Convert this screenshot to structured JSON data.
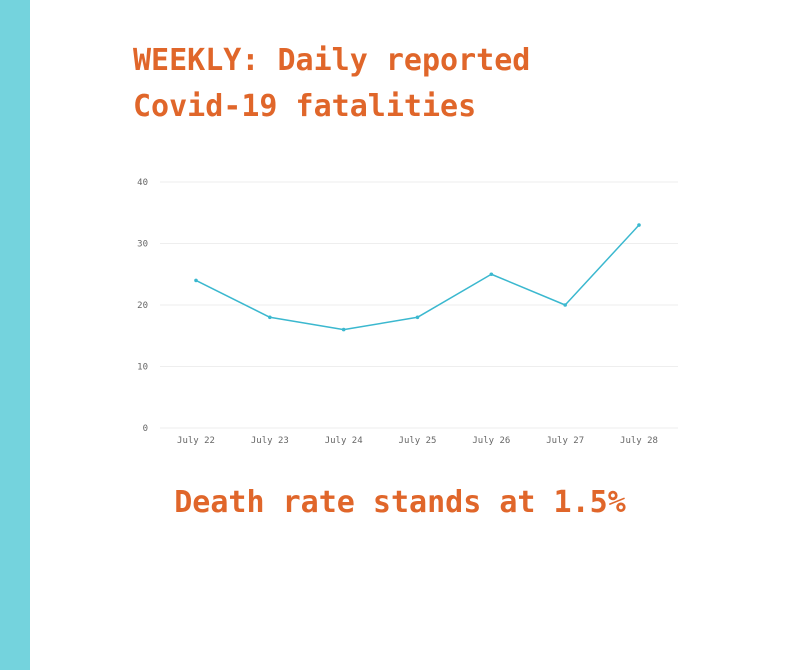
{
  "colors": {
    "side_bar": "#74D3DD",
    "accent": "#E0662A",
    "line": "#3BB8CF",
    "grid": "#EEEEEE",
    "tick_text": "#666666"
  },
  "title": {
    "line1": "WEEKLY: Daily reported",
    "line2": "Covid-19 fatalities"
  },
  "footer": "Death rate stands at 1.5%",
  "chart_data": {
    "type": "line",
    "categories": [
      "July 22",
      "July 23",
      "July 24",
      "July 25",
      "July 26",
      "July 27",
      "July 28"
    ],
    "series": [
      {
        "values": [
          24,
          18,
          16,
          18,
          25,
          20,
          33
        ]
      }
    ],
    "ylim": [
      0,
      40
    ],
    "yticks": [
      0,
      10,
      20,
      30,
      40
    ],
    "grid": true,
    "legend": "none"
  }
}
